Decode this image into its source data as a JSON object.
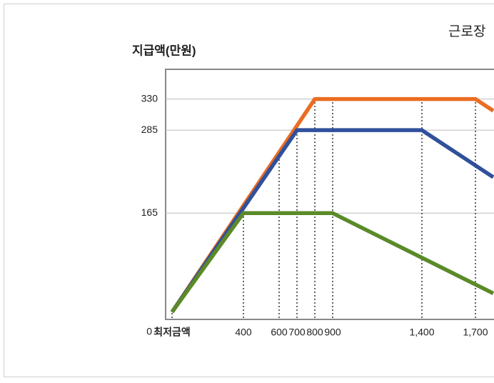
{
  "chart_data": {
    "type": "line",
    "title": "근로장",
    "y_label": "지급액(만원)",
    "xlim": [
      -36,
      1804
    ],
    "xticks": [
      {
        "value": 0,
        "label": "최저금액"
      },
      400,
      600,
      700,
      800,
      900,
      {
        "value": 1400,
        "label": "1,400"
      },
      {
        "value": 1700,
        "label": "1,700"
      }
    ],
    "ylim": [
      0,
      373
    ],
    "yticks": [
      0,
      165,
      285,
      330
    ],
    "grid": true,
    "series": [
      {
        "name": "orange",
        "color": "#ea6d22",
        "x": [
          0,
          800,
          1700,
          1800
        ],
        "values": [
          22,
          330,
          330,
          313
        ]
      },
      {
        "name": "blue",
        "color": "#30509b",
        "x": [
          0,
          700,
          1400,
          1800
        ],
        "values": [
          22,
          285,
          285,
          217
        ]
      },
      {
        "name": "green",
        "color": "#5b8a28",
        "x": [
          0,
          400,
          900,
          1800
        ],
        "values": [
          22,
          165,
          165,
          49
        ]
      }
    ]
  }
}
